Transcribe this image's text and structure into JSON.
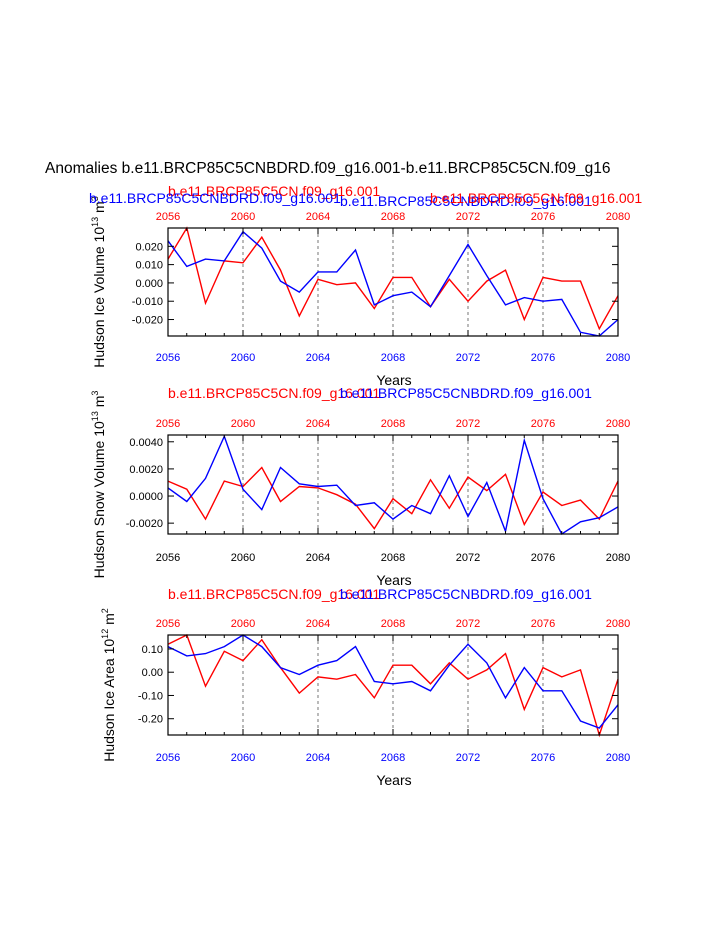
{
  "title": "Anomalies b.e11.BRCP85C5CNBDRD.f09_g16.001-b.e11.BRCP85C5CN.f09_g16",
  "colors": {
    "red": "#ff0000",
    "blue": "#0000ff",
    "black": "#000000"
  },
  "chart_data": [
    {
      "type": "line",
      "ylabel": "Hudson Ice Volume 10",
      "ylabel_exp": "13",
      "ylabel_unit": " m",
      "ylabel_unit_exp": "3",
      "xlabel": "Years",
      "legend_top": [
        {
          "text": "b.e11.BRCP85C5CN.f09_g16.001",
          "color": "#ff0000"
        },
        {
          "text": "b.e11.BRCP85C5CNBDRD.f09_g16.001",
          "color": "#0000ff"
        }
      ],
      "overlay_labels": [
        {
          "text": "b.e11.BRCP85C5CNBDRD.f09_g16.001",
          "color": "#0000ff"
        },
        {
          "text": "b.e11.BRCP85C5CN.f09_g16.001",
          "color": "#ff0000"
        }
      ],
      "x": [
        2056,
        2057,
        2058,
        2059,
        2060,
        2061,
        2062,
        2063,
        2064,
        2065,
        2066,
        2067,
        2068,
        2069,
        2070,
        2071,
        2072,
        2073,
        2074,
        2075,
        2076,
        2077,
        2078,
        2079,
        2080
      ],
      "xlim": [
        2056,
        2080
      ],
      "xticks": [
        2056,
        2060,
        2064,
        2068,
        2072,
        2076,
        2080
      ],
      "xtick_labels": [
        "2056",
        "2060",
        "2064",
        "2068",
        "2072",
        "2076",
        "2080"
      ],
      "top_tick_color": "#ff0000",
      "bottom_tick_color": "#0000ff",
      "ylim": [
        -0.029,
        0.03
      ],
      "yticks": [
        0.02,
        0.01,
        0.0,
        -0.01,
        -0.02
      ],
      "ytick_labels": [
        "0.020",
        "0.010",
        "0.000",
        "-0.010",
        "-0.020"
      ],
      "series": [
        {
          "color": "#ff0000",
          "values": [
            0.013,
            0.03,
            -0.011,
            0.012,
            0.011,
            0.025,
            0.007,
            -0.018,
            0.002,
            -0.001,
            0.0,
            -0.014,
            0.003,
            0.003,
            -0.013,
            0.002,
            -0.01,
            0.001,
            0.007,
            -0.02,
            0.003,
            0.001,
            0.001,
            -0.025,
            -0.007
          ]
        },
        {
          "color": "#0000ff",
          "values": [
            0.023,
            0.009,
            0.013,
            0.012,
            0.028,
            0.019,
            0.001,
            -0.005,
            0.006,
            0.006,
            0.018,
            -0.012,
            -0.007,
            -0.005,
            -0.013,
            0.004,
            0.021,
            0.004,
            -0.012,
            -0.008,
            -0.01,
            -0.009,
            -0.027,
            -0.029,
            -0.02
          ]
        }
      ]
    },
    {
      "type": "line",
      "ylabel": "Hudson Snow Volume 10",
      "ylabel_exp": "13",
      "ylabel_unit": " m",
      "ylabel_unit_exp": "3",
      "xlabel": "Years",
      "legend_top": [
        {
          "text": "b.e11.BRCP85C5CN.f09_g16.001",
          "color": "#ff0000"
        },
        {
          "text": "b.e11.BRCP85C5CNBDRD.f09_g16.001",
          "color": "#0000ff"
        }
      ],
      "overlay_labels": [],
      "x": [
        2056,
        2057,
        2058,
        2059,
        2060,
        2061,
        2062,
        2063,
        2064,
        2065,
        2066,
        2067,
        2068,
        2069,
        2070,
        2071,
        2072,
        2073,
        2074,
        2075,
        2076,
        2077,
        2078,
        2079,
        2080
      ],
      "xlim": [
        2056,
        2080
      ],
      "xticks": [
        2056,
        2060,
        2064,
        2068,
        2072,
        2076,
        2080
      ],
      "xtick_labels": [
        "2056",
        "2060",
        "2064",
        "2068",
        "2072",
        "2076",
        "2080"
      ],
      "top_tick_color": "#ff0000",
      "bottom_tick_color": "#000000",
      "ylim": [
        -0.0028,
        0.0045
      ],
      "yticks": [
        0.004,
        0.002,
        0.0,
        -0.002
      ],
      "ytick_labels": [
        "0.0040",
        "0.0020",
        "0.0000",
        "-0.0020"
      ],
      "series": [
        {
          "color": "#ff0000",
          "values": [
            0.0011,
            0.0005,
            -0.0017,
            0.0011,
            0.0007,
            0.0021,
            -0.0004,
            0.0007,
            0.0006,
            0.0001,
            -0.0006,
            -0.0024,
            -0.0002,
            -0.0013,
            0.0012,
            -0.0009,
            0.0014,
            0.0004,
            0.0016,
            -0.0021,
            0.0003,
            -0.0007,
            -0.0003,
            -0.0017,
            0.0011
          ]
        },
        {
          "color": "#0000ff",
          "values": [
            0.0006,
            -0.0004,
            0.0013,
            0.0044,
            0.0005,
            -0.001,
            0.0021,
            0.0009,
            0.0007,
            0.0008,
            -0.0007,
            -0.0005,
            -0.0017,
            -0.0007,
            -0.0013,
            0.0015,
            -0.0015,
            0.001,
            -0.0026,
            0.0041,
            -0.0002,
            -0.0028,
            -0.0019,
            -0.0016,
            -0.0008
          ]
        }
      ]
    },
    {
      "type": "line",
      "ylabel": "Hudson Ice Area 10",
      "ylabel_exp": "12",
      "ylabel_unit": " m",
      "ylabel_unit_exp": "2",
      "xlabel": "Years",
      "legend_top": [
        {
          "text": "b.e11.BRCP85C5CN.f09_g16.001",
          "color": "#ff0000"
        },
        {
          "text": "b.e11.BRCP85C5CNBDRD.f09_g16.001",
          "color": "#0000ff"
        }
      ],
      "overlay_labels": [],
      "x": [
        2056,
        2057,
        2058,
        2059,
        2060,
        2061,
        2062,
        2063,
        2064,
        2065,
        2066,
        2067,
        2068,
        2069,
        2070,
        2071,
        2072,
        2073,
        2074,
        2075,
        2076,
        2077,
        2078,
        2079,
        2080
      ],
      "xlim": [
        2056,
        2080
      ],
      "xticks": [
        2056,
        2060,
        2064,
        2068,
        2072,
        2076,
        2080
      ],
      "xtick_labels": [
        "2056",
        "2060",
        "2064",
        "2068",
        "2072",
        "2076",
        "2080"
      ],
      "top_tick_color": "#ff0000",
      "bottom_tick_color": "#0000ff",
      "ylim": [
        -0.27,
        0.16
      ],
      "yticks": [
        0.1,
        0.0,
        -0.1,
        -0.2
      ],
      "ytick_labels": [
        "0.10",
        "0.00",
        "-0.10",
        "-0.20"
      ],
      "series": [
        {
          "color": "#ff0000",
          "values": [
            0.12,
            0.16,
            -0.06,
            0.09,
            0.05,
            0.14,
            0.02,
            -0.09,
            -0.02,
            -0.03,
            -0.01,
            -0.11,
            0.03,
            0.03,
            -0.05,
            0.04,
            -0.03,
            0.01,
            0.08,
            -0.16,
            0.02,
            -0.02,
            0.01,
            -0.27,
            -0.03
          ]
        },
        {
          "color": "#0000ff",
          "values": [
            0.11,
            0.07,
            0.08,
            0.11,
            0.16,
            0.11,
            0.02,
            -0.01,
            0.03,
            0.05,
            0.11,
            -0.04,
            -0.05,
            -0.04,
            -0.08,
            0.03,
            0.12,
            0.04,
            -0.11,
            0.02,
            -0.08,
            -0.08,
            -0.21,
            -0.24,
            -0.14
          ]
        }
      ]
    }
  ]
}
